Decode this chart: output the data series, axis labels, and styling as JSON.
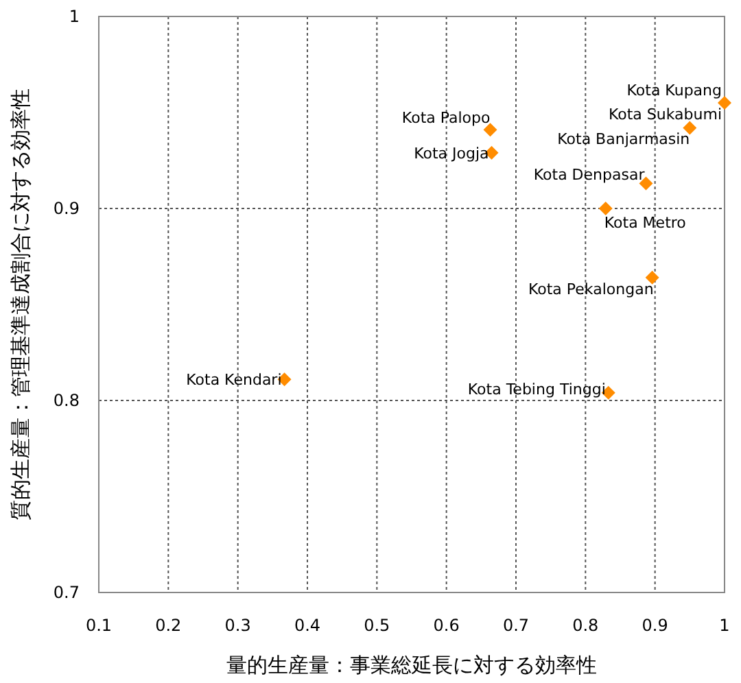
{
  "chart_data": {
    "type": "scatter",
    "xlabel": "量的生産量：事業総延長に対する効率性",
    "ylabel": "質的生産量：管理基準達成割合に対する効率性",
    "xlim": [
      0.1,
      1
    ],
    "ylim": [
      0.7,
      1
    ],
    "xticks": [
      0.1,
      0.2,
      0.3,
      0.4,
      0.5,
      0.6,
      0.7,
      0.8,
      0.9,
      1
    ],
    "yticks": [
      0.7,
      0.8,
      0.9,
      1
    ],
    "grid": true,
    "marker": "diamond",
    "series": [
      {
        "color": "#ff8c00",
        "x": [
          null,
          1.0,
          0.95,
          0.887,
          0.829,
          0.896,
          0.663,
          0.665,
          0.367,
          0.833
        ],
        "values": [
          null,
          0.955,
          0.942,
          0.913,
          0.9,
          0.864,
          0.941,
          0.929,
          0.811,
          0.804
        ]
      }
    ],
    "annotations": [
      {
        "text": "Kota Kupang",
        "x": 1.0,
        "y": 0.956
      },
      {
        "text": "Kota Sukabumi",
        "x": 1.0,
        "y": 0.955
      },
      {
        "text": "Kota Banjarmasin",
        "x": 0.95,
        "y": 0.942
      },
      {
        "text": "Kota Denpasar",
        "x": 0.887,
        "y": 0.913
      },
      {
        "text": "Kota Metro",
        "x": 0.829,
        "y": 0.9
      },
      {
        "text": "Kota Pekalongan",
        "x": 0.896,
        "y": 0.864
      },
      {
        "text": "Kota Palopo",
        "x": 0.663,
        "y": 0.941
      },
      {
        "text": "Kota Jogja",
        "x": 0.665,
        "y": 0.929
      },
      {
        "text": "Kota Kendari",
        "x": 0.367,
        "y": 0.811
      },
      {
        "text": "Kota Tebing Tinggi",
        "x": 0.833,
        "y": 0.804
      }
    ]
  }
}
